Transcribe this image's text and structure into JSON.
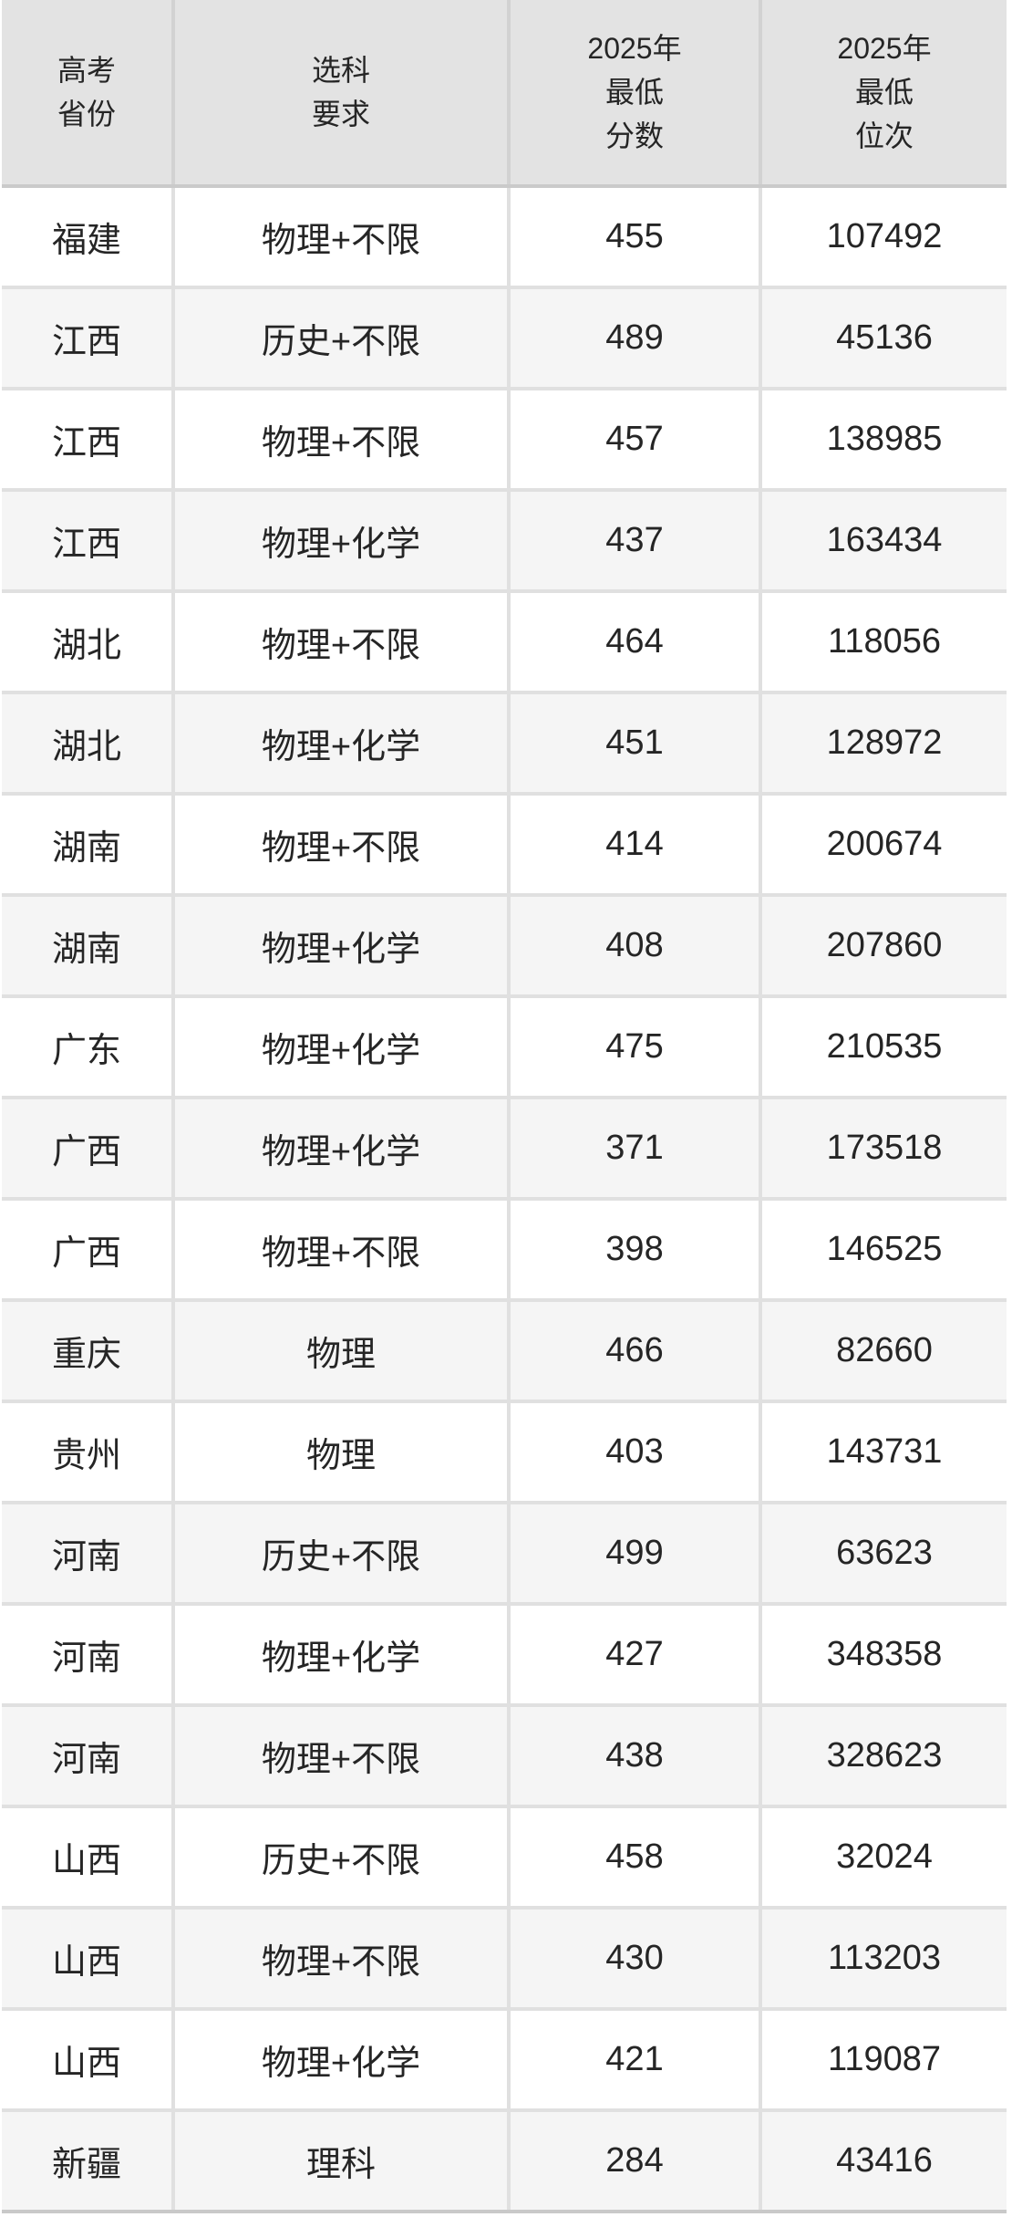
{
  "colors": {
    "header_bg": "#e3e3e3",
    "row_bg": "#ffffff",
    "row_alt_bg": "#f5f5f5",
    "header_grid_line": "#d2d2d2",
    "body_grid_line": "#e0e0e0",
    "header_bottom_line": "#cacaca",
    "text": "#252525"
  },
  "table": {
    "header_labels": [
      "高考\n省份",
      "选科\n要求",
      "2025年\n最低\n分数",
      "2025年\n最低\n位次"
    ]
  },
  "chart_data": {
    "type": "table",
    "columns": [
      "高考省份",
      "选科要求",
      "2025年最低分数",
      "2025年最低位次"
    ],
    "rows": [
      [
        "福建",
        "物理+不限",
        455,
        107492
      ],
      [
        "江西",
        "历史+不限",
        489,
        45136
      ],
      [
        "江西",
        "物理+不限",
        457,
        138985
      ],
      [
        "江西",
        "物理+化学",
        437,
        163434
      ],
      [
        "湖北",
        "物理+不限",
        464,
        118056
      ],
      [
        "湖北",
        "物理+化学",
        451,
        128972
      ],
      [
        "湖南",
        "物理+不限",
        414,
        200674
      ],
      [
        "湖南",
        "物理+化学",
        408,
        207860
      ],
      [
        "广东",
        "物理+化学",
        475,
        210535
      ],
      [
        "广西",
        "物理+化学",
        371,
        173518
      ],
      [
        "广西",
        "物理+不限",
        398,
        146525
      ],
      [
        "重庆",
        "物理",
        466,
        82660
      ],
      [
        "贵州",
        "物理",
        403,
        143731
      ],
      [
        "河南",
        "历史+不限",
        499,
        63623
      ],
      [
        "河南",
        "物理+化学",
        427,
        348358
      ],
      [
        "河南",
        "物理+不限",
        438,
        328623
      ],
      [
        "山西",
        "历史+不限",
        458,
        32024
      ],
      [
        "山西",
        "物理+不限",
        430,
        113203
      ],
      [
        "山西",
        "物理+化学",
        421,
        119087
      ],
      [
        "新疆",
        "理科",
        284,
        43416
      ]
    ]
  }
}
